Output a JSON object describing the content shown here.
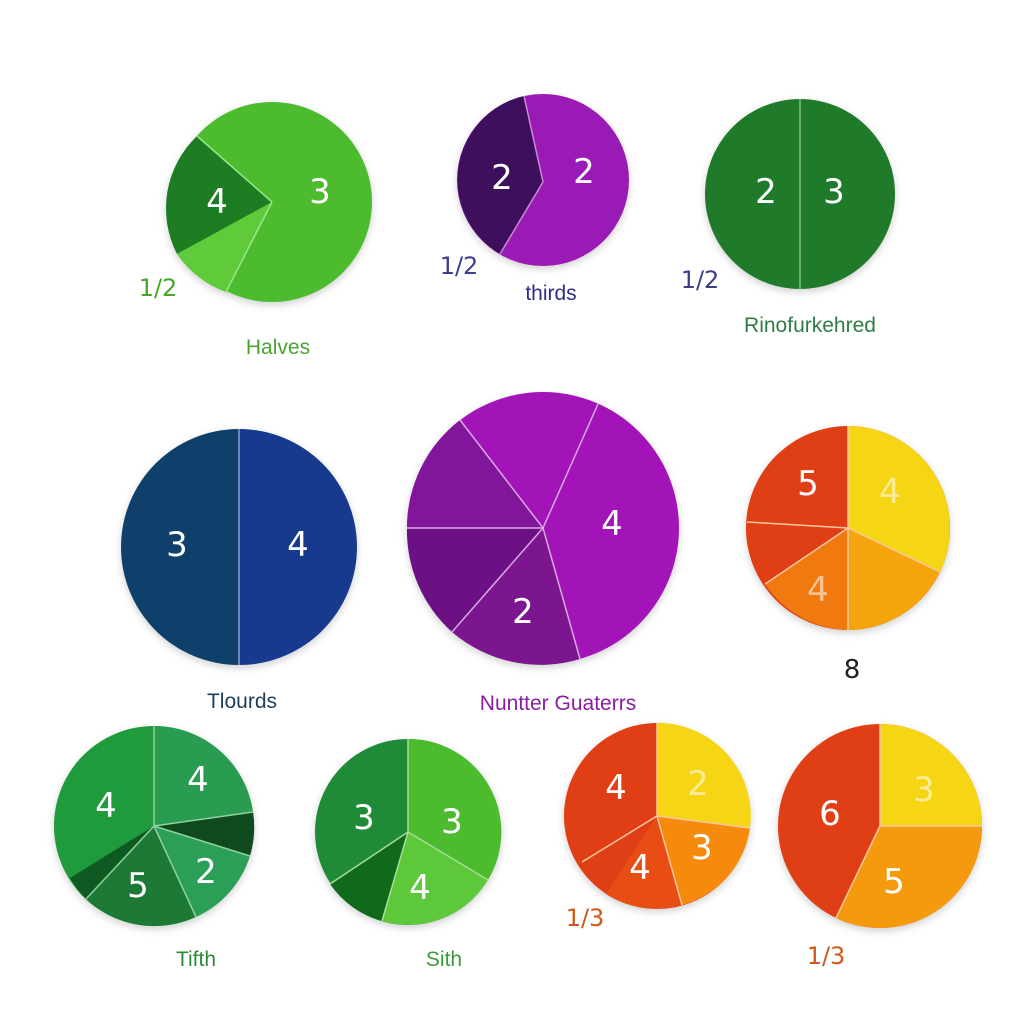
{
  "palette": {
    "green_bright": "#4cbb2e",
    "green_dark": "#1f7a2a",
    "purple": "#9a16b0",
    "purple_dark": "#3d0f5c",
    "navy": "#0f3f6b",
    "blue": "#173a8f",
    "red": "#e03f16",
    "orange": "#f5900c",
    "yellow": "#f7dd14"
  },
  "captions": {
    "halves": "Halves",
    "thirds": "thirds",
    "third_circle": "Rinofurkehred",
    "navy_circle": "Tlourds",
    "big_purple": "Nuntter Guaterrs",
    "fifth": "Tifth",
    "sixth": "Sith"
  },
  "fractions": {
    "a": "1/2",
    "b": "1/2",
    "c": "1/2",
    "d": "1/3",
    "e": "1/3"
  },
  "mark": "8",
  "circles": [
    {
      "name": "circle-halves",
      "labels": [
        "4",
        "3"
      ]
    },
    {
      "name": "circle-thirds",
      "labels": [
        "2",
        "2"
      ]
    },
    {
      "name": "circle-green-half",
      "labels": [
        "2",
        "3"
      ]
    },
    {
      "name": "circle-navy",
      "labels": [
        "3",
        "4"
      ]
    },
    {
      "name": "circle-big-purple",
      "labels": [
        "4",
        "2"
      ]
    },
    {
      "name": "circle-warm-top",
      "labels": [
        "5",
        "4",
        "4"
      ]
    },
    {
      "name": "circle-fifth",
      "labels": [
        "4",
        "4",
        "5",
        "2"
      ]
    },
    {
      "name": "circle-sixth",
      "labels": [
        "3",
        "3",
        "4"
      ]
    },
    {
      "name": "circle-warm-left",
      "labels": [
        "4",
        "2",
        "4",
        "3"
      ]
    },
    {
      "name": "circle-warm-right",
      "labels": [
        "6",
        "3",
        "5"
      ]
    }
  ]
}
